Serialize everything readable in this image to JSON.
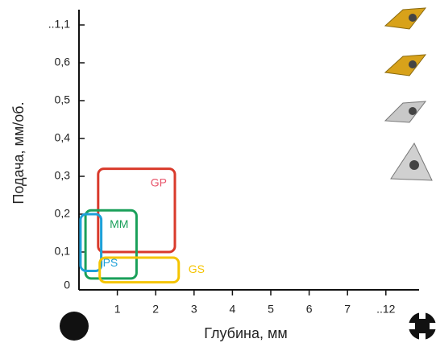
{
  "chart_data": {
    "type": "range",
    "x_label": "Глубина, мм",
    "y_label": "Подача, мм/об.",
    "xlim": [
      0,
      12
    ],
    "xticks": [
      1,
      2,
      3,
      4,
      5,
      6,
      7,
      {
        "value": 12,
        "label": "..12"
      }
    ],
    "ylim": [
      0,
      1.1
    ],
    "yticks": [
      0,
      {
        "value": 0.1,
        "label": "0,1"
      },
      {
        "value": 0.2,
        "label": "0,2"
      },
      {
        "value": 0.3,
        "label": "0,3"
      },
      {
        "value": 0.4,
        "label": "0,4"
      },
      {
        "value": 0.5,
        "label": "0,5"
      },
      {
        "value": 0.6,
        "label": "0,6"
      },
      {
        "value": 1.1,
        "label": "..1,1"
      }
    ],
    "series": [
      {
        "name": "GP",
        "color": "#d93a2b",
        "label_color": "#e8546a",
        "x": [
          0.5,
          2.5
        ],
        "y": [
          0.1,
          0.32
        ]
      },
      {
        "name": "MM",
        "color": "#1aa05a",
        "label_color": "#1aa05a",
        "x": [
          0.17,
          1.5
        ],
        "y": [
          0.03,
          0.21
        ]
      },
      {
        "name": "PS",
        "color": "#1ea0d8",
        "label_color": "#1ea0d8",
        "x": [
          0.04,
          0.58
        ],
        "y": [
          0.05,
          0.2
        ]
      },
      {
        "name": "GS",
        "color": "#f5c400",
        "label_color": "#f5c400",
        "x": [
          0.54,
          2.6
        ],
        "y": [
          0.02,
          0.085
        ]
      }
    ]
  }
}
